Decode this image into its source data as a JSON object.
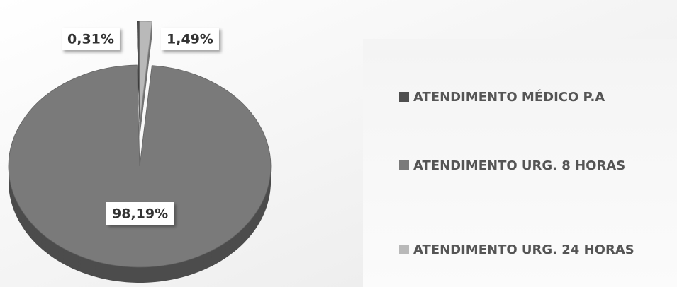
{
  "chart_data": {
    "type": "pie",
    "categories": [
      "ATENDIMENTO MÉDICO P.A",
      "ATENDIMENTO URG. 8 HORAS",
      "ATENDIMENTO URG. 24 HORAS"
    ],
    "values": [
      0.31,
      98.19,
      1.49
    ],
    "value_labels": [
      "0,31%",
      "98,19%",
      "1,49%"
    ],
    "colors": [
      "#4f4f4f",
      "#7a7a7a",
      "#b9b9b9"
    ],
    "exploded": [
      true,
      false,
      true
    ],
    "legend": "right"
  }
}
